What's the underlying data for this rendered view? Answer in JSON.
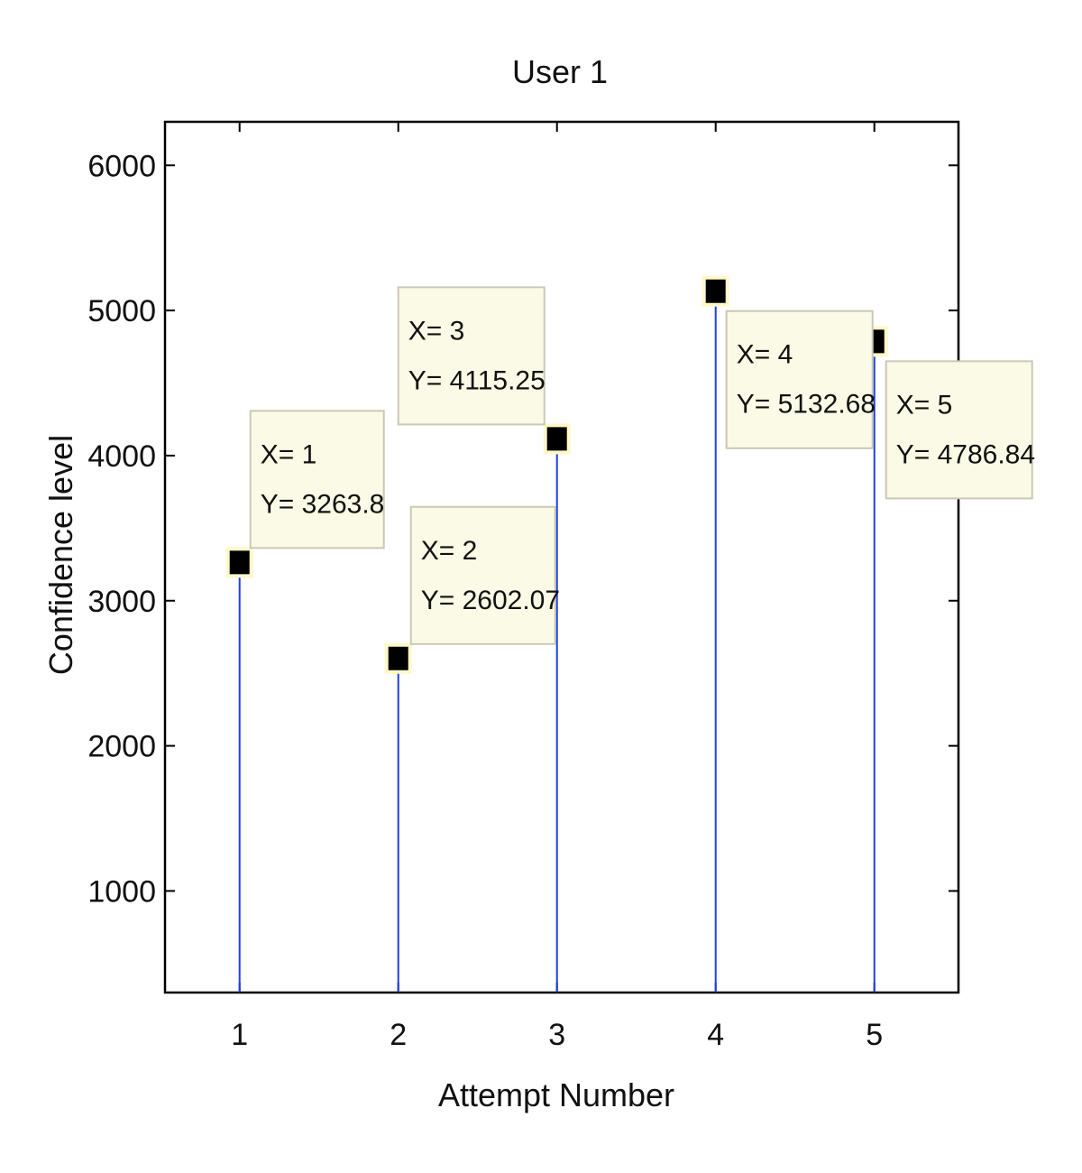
{
  "chart_data": {
    "type": "stem",
    "title": "User 1",
    "xlabel": "Attempt Number",
    "ylabel": "Confidence level",
    "xlim": [
      0.53,
      5.53
    ],
    "ylim": [
      300,
      6300
    ],
    "xticks": [
      "1",
      "2",
      "3",
      "4",
      "5"
    ],
    "yticks": [
      "1000",
      "2000",
      "3000",
      "4000",
      "5000",
      "6000"
    ],
    "grid": false,
    "x": [
      1,
      2,
      3,
      4,
      5
    ],
    "y": [
      3263.8,
      2602.07,
      4115.25,
      5132.68,
      4786.84
    ],
    "datatips": [
      {
        "x_label": "X= 1",
        "y_label": "Y= 3263.8"
      },
      {
        "x_label": "X= 2",
        "y_label": "Y= 2602.07"
      },
      {
        "x_label": "X= 3",
        "y_label": "Y= 4115.25"
      },
      {
        "x_label": "X= 4",
        "y_label": "Y= 5132.68"
      },
      {
        "x_label": "X= 5",
        "y_label": "Y= 4786.84"
      }
    ],
    "colors": {
      "stem": "#1f3fe0",
      "marker": "#000000",
      "marker_halo": "#fff8c8",
      "tip_fill": "#fafae6",
      "tip_border": "#c9c9b6",
      "axis": "#000000"
    }
  }
}
